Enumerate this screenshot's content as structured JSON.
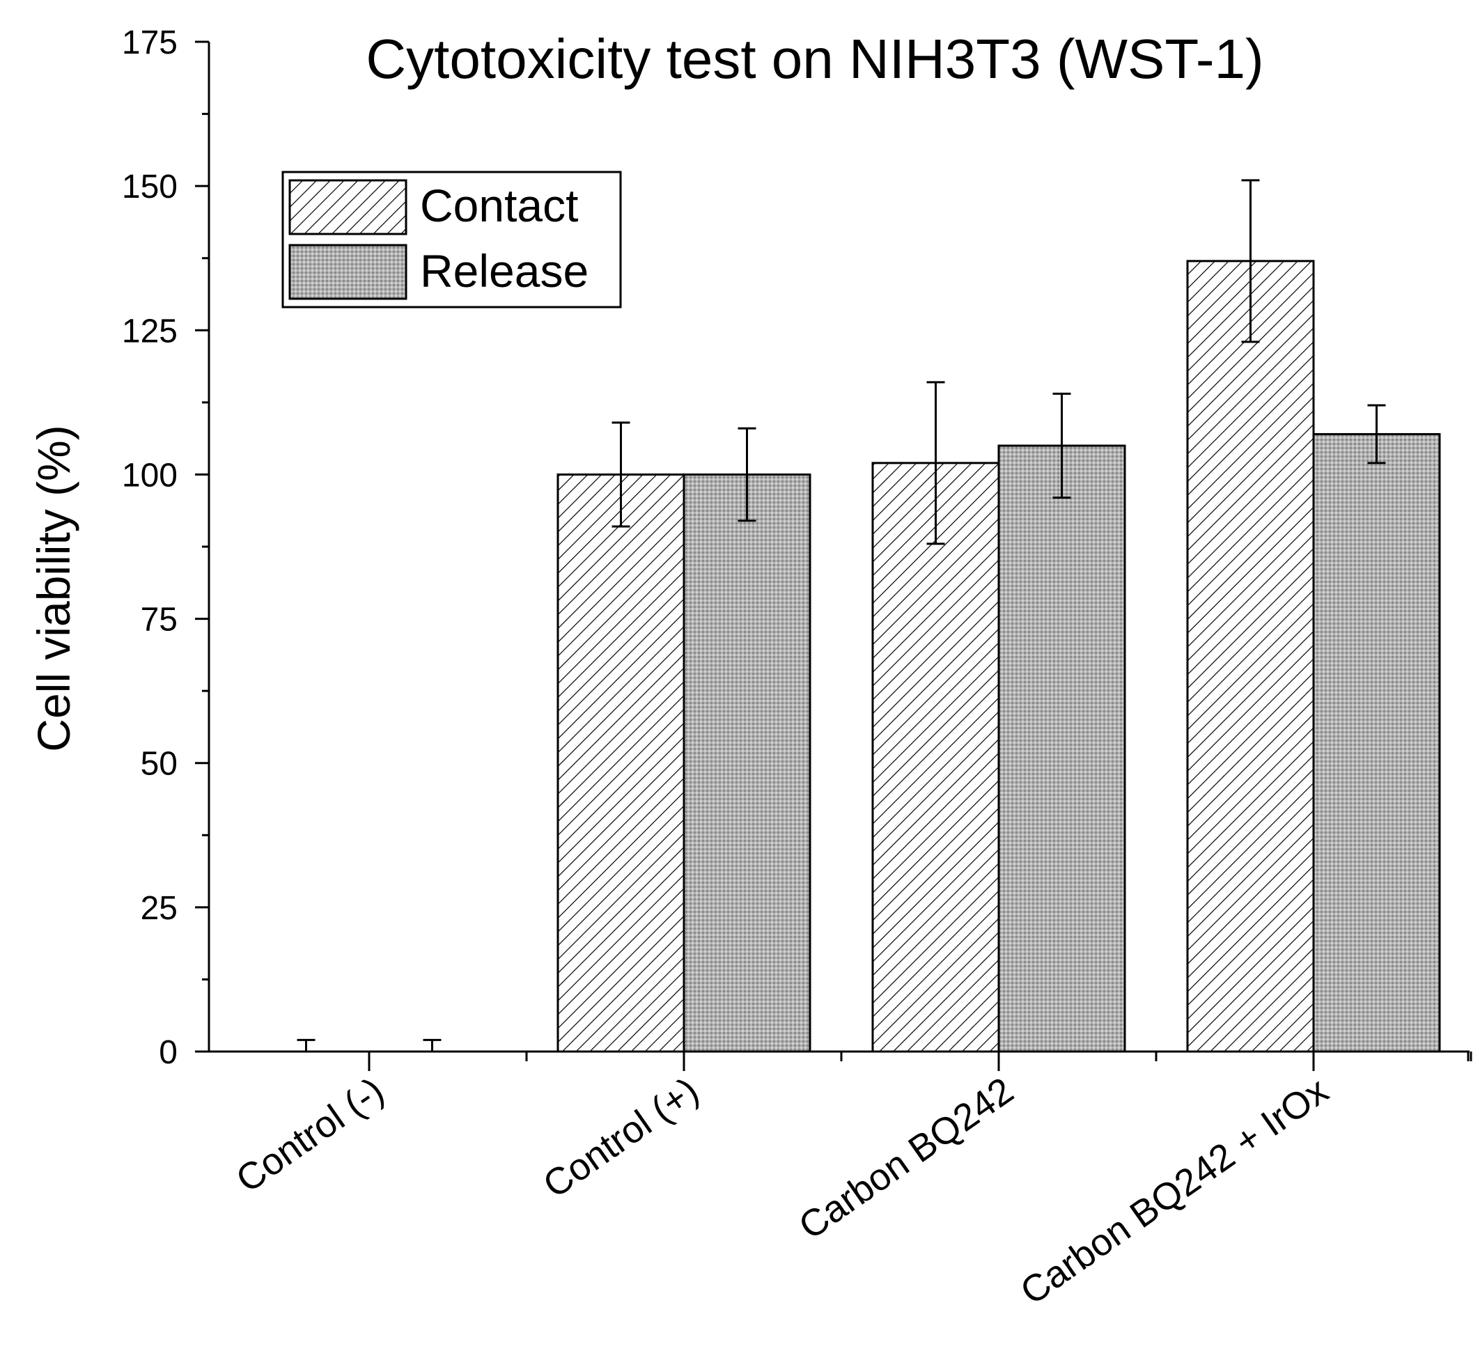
{
  "chart_data": {
    "type": "bar",
    "title": "Cytotoxicity test on NIH3T3 (WST-1)",
    "xlabel": "",
    "ylabel": "Cell viability (%)",
    "ylim": [
      0,
      175
    ],
    "yticks": [
      0,
      25,
      50,
      75,
      100,
      125,
      150,
      175
    ],
    "categories": [
      "Control (-)",
      "Control (+)",
      "Carbon BQ242",
      "Carbon BQ242 + IrOx"
    ],
    "series": [
      {
        "name": "Contact",
        "pattern": "diagonal-hatch",
        "values": [
          0,
          100,
          102,
          137
        ],
        "errors": [
          2,
          9,
          14,
          14
        ]
      },
      {
        "name": "Release",
        "pattern": "grey-dots",
        "values": [
          0,
          100,
          105,
          107
        ],
        "errors": [
          2,
          8,
          9,
          5
        ]
      }
    ],
    "legend_position": "top-left",
    "grid": false,
    "colors": {
      "bar_stroke": "#000000",
      "release_fill": "#a9a9a9",
      "axis": "#000000"
    }
  }
}
